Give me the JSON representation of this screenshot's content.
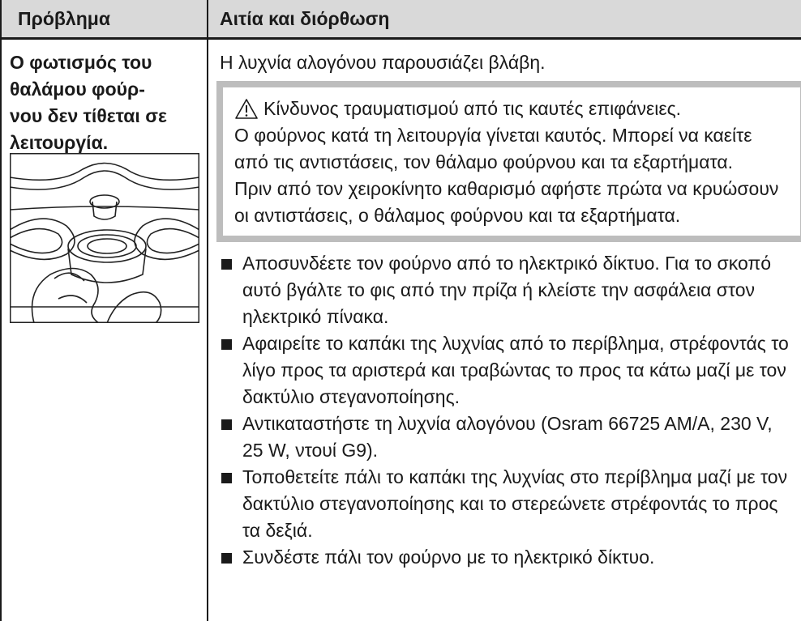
{
  "table": {
    "header": [
      "Πρόβλημα",
      "Αιτία και διόρθωση"
    ],
    "problem_lines": [
      "Ο φωτισμός του",
      "θαλάμου φούρ-",
      "νου δεν τίθεται σε",
      "λειτουργία."
    ],
    "cause": "Η λυχνία αλογόνου παρουσιάζει βλάβη.",
    "warning": {
      "title": "Κίνδυνος τραυματισμού από τις καυτές επιφάνειες.",
      "paragraphs": [
        "Ο φούρνος κατά τη λειτουργία γίνεται καυτός. Μπορεί να καείτε από τις αντιστάσεις, τον θάλαμο φούρνου και τα εξαρτήματα.",
        "Πριν από τον χειροκίνητο καθαρισμό αφήστε πρώτα να κρυώσουν οι αντιστάσεις, ο θάλαμος φούρνου και τα εξαρτήματα."
      ]
    },
    "steps": [
      "Αποσυνδέετε τον φούρνο από το ηλεκτρικό δίκτυο. Για το σκοπό αυτό βγάλτε το φις από την πρίζα ή κλείστε την ασφάλεια στον ηλεκτρικό πίνακα.",
      "Αφαιρείτε το καπάκι της λυχνίας από το περίβλημα, στρέφοντάς το λίγο προς τα αριστερά και τραβώντας το προς τα κάτω μαζί με τον δακτύλιο στεγανοποίησης.",
      "Αντικαταστήστε τη λυχνία αλογόνου (Osram 66725 AM/A, 230 V, 25 W, ντουί G9).",
      "Τοποθετείτε πάλι το καπάκι της λυχνίας στο περίβλημα μαζί με τον δακτύλιο στεγανοποίησης και το στερεώνετε στρέφοντάς το προς τα δεξιά.",
      "Συνδέστε πάλι τον φούρνο με το ηλεκτρικό δίκτυο."
    ]
  }
}
